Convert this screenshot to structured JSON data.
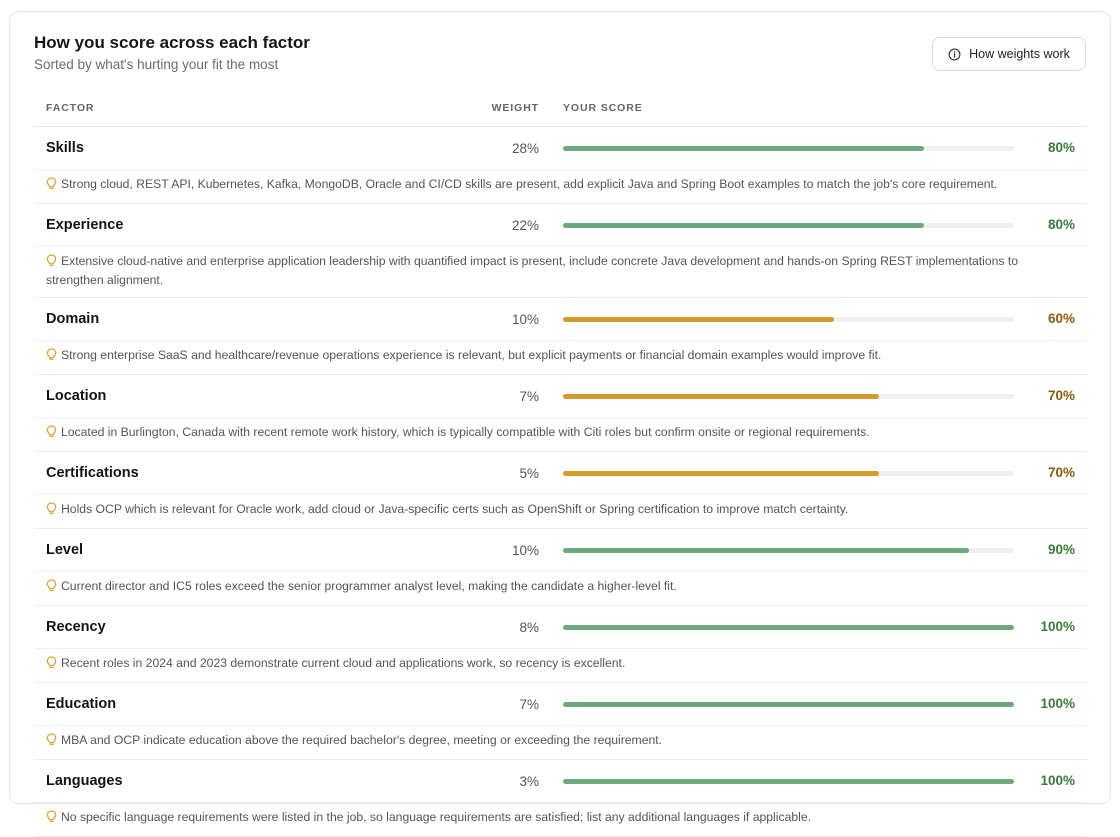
{
  "header": {
    "title": "How you score across each factor",
    "subtitle": "Sorted by what's hurting your fit the most",
    "weights_button": "How weights work"
  },
  "columns": {
    "factor": "FACTOR",
    "weight": "WEIGHT",
    "score": "YOUR SCORE"
  },
  "colors": {
    "green_bar": "#6aaa7c",
    "green_text": "#3d7a3f",
    "amber_bar": "#d39b2e",
    "amber_text": "#8a5a12",
    "bulb": "#d9a12a"
  },
  "factors": [
    {
      "name": "Skills",
      "weight": "28%",
      "score": 0.8,
      "score_label": "80%",
      "tone": "green",
      "tip": "Strong cloud, REST API, Kubernetes, Kafka, MongoDB, Oracle and CI/CD skills are present, add explicit Java and Spring Boot examples to match the job's core requirement."
    },
    {
      "name": "Experience",
      "weight": "22%",
      "score": 0.8,
      "score_label": "80%",
      "tone": "green",
      "tip": "Extensive cloud-native and enterprise application leadership with quantified impact is present, include concrete Java development and hands-on Spring REST implementations to strengthen alignment."
    },
    {
      "name": "Domain",
      "weight": "10%",
      "score": 0.6,
      "score_label": "60%",
      "tone": "amber",
      "tip": "Strong enterprise SaaS and healthcare/revenue operations experience is relevant, but explicit payments or financial domain examples would improve fit."
    },
    {
      "name": "Location",
      "weight": "7%",
      "score": 0.7,
      "score_label": "70%",
      "tone": "amber",
      "tip": "Located in Burlington, Canada with recent remote work history, which is typically compatible with Citi roles but confirm onsite or regional requirements."
    },
    {
      "name": "Certifications",
      "weight": "5%",
      "score": 0.7,
      "score_label": "70%",
      "tone": "amber",
      "tip": "Holds OCP which is relevant for Oracle work, add cloud or Java-specific certs such as OpenShift or Spring certification to improve match certainty."
    },
    {
      "name": "Level",
      "weight": "10%",
      "score": 0.9,
      "score_label": "90%",
      "tone": "green",
      "tip": "Current director and IC5 roles exceed the senior programmer analyst level, making the candidate a higher-level fit."
    },
    {
      "name": "Recency",
      "weight": "8%",
      "score": 1.0,
      "score_label": "100%",
      "tone": "green",
      "tip": "Recent roles in 2024 and 2023 demonstrate current cloud and applications work, so recency is excellent."
    },
    {
      "name": "Education",
      "weight": "7%",
      "score": 1.0,
      "score_label": "100%",
      "tone": "green",
      "tip": "MBA and OCP indicate education above the required bachelor's degree, meeting or exceeding the requirement."
    },
    {
      "name": "Languages",
      "weight": "3%",
      "score": 1.0,
      "score_label": "100%",
      "tone": "green",
      "tip": "No specific language requirements were listed in the job, so language requirements are satisfied; list any additional languages if applicable."
    }
  ]
}
